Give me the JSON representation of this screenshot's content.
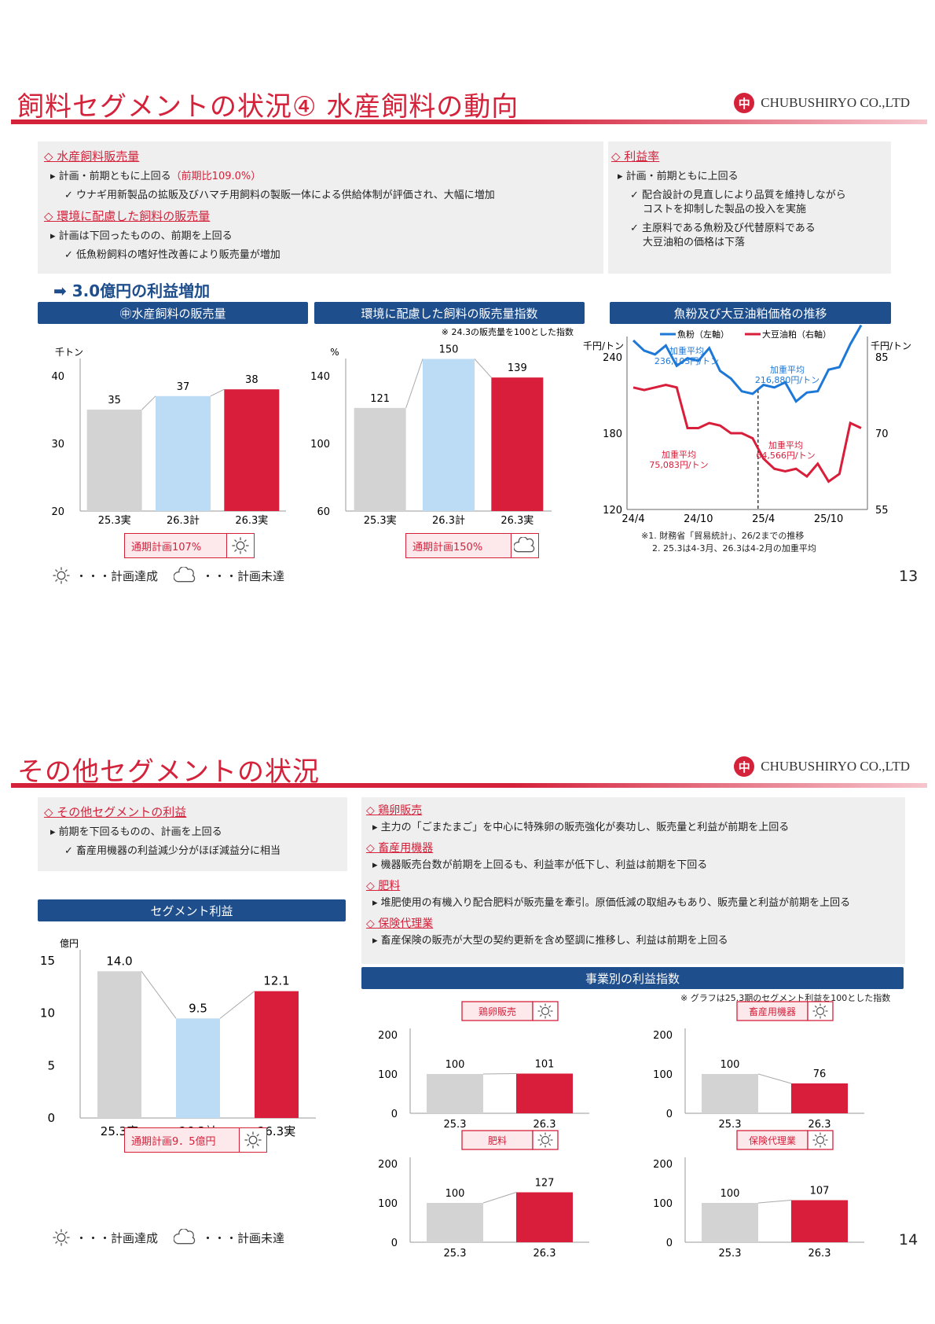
{
  "logo": {
    "mark": "中",
    "text": "CHUBUSHIRYO CO.,LTD"
  },
  "slide13": {
    "title": "飼料セグメントの状況④ 水産飼料の動向",
    "left": {
      "h1": "◇ 水産飼料販売量",
      "b1a": "▸ 計画・前期ともに上回る",
      "b1a_red": "（前期比109.0%）",
      "b1b": "✓ ウナギ用新製品の拡販及びハマチ用飼料の製販一体による供給体制が評価され、大幅に増加",
      "h2": "◇ 環境に配慮した飼料の販売量",
      "b2a": "▸ 計画は下回ったものの、前期を上回る",
      "b2b": "✓ 低魚粉飼料の嗜好性改善により販売量が増加"
    },
    "right": {
      "h1": "◇ 利益率",
      "b1": "▸ 計画・前期ともに上回る",
      "b2a": "✓ 配合設計の見直しにより品質を維持しながら",
      "b2b": "コストを抑制した製品の投入を実施",
      "b3a": "✓ 主原料である魚粉及び代替原料である",
      "b3b": "大豆油粕の価格は下落"
    },
    "arrow": "➡ 3.0億円の利益増加",
    "hdr1": "㊥水産飼料の販売量",
    "hdr2": "環境に配慮した飼料の販売量指数",
    "hdr3": "魚粉及び大豆油粕価格の推移",
    "box1": "通期計画107%",
    "box2": "通期計画150%",
    "note1": "※1. 財務省「貿易統計」、26/2までの推移",
    "note2": "2. 25.3は4-3月、26.3は4-2月の加重平均",
    "legend_ok": "・・・計画達成",
    "legend_ng": "・・・計画未達",
    "page": "13"
  },
  "slide14": {
    "title": "その他セグメントの状況",
    "left": {
      "h1": "◇ その他セグメントの利益",
      "b1": "▸ 前期を下回るものの、計画を上回る",
      "b2": "✓ 畜産用機器の利益減少分がほぼ減益分に相当"
    },
    "right": {
      "h1": "◇ 鶏卵販売",
      "b1": "▸ 主力の「ごまたまご」を中心に特殊卵の販売強化が奏功し、販売量と利益が前期を上回る",
      "h2": "◇ 畜産用機器",
      "b2": "▸ 機器販売台数が前期を上回るも、利益率が低下し、利益は前期を下回る",
      "h3": "◇ 肥料",
      "b3": "▸ 堆肥使用の有機入り配合肥料が販売量を牽引。原価低減の取組みもあり、販売量と利益が前期を上回る",
      "h4": "◇ 保険代理業",
      "b4": "▸ 畜産保険の販売が大型の契約更新を含め堅調に推移し、利益は前期を上回る"
    },
    "hdr1": "セグメント利益",
    "hdr2": "事業別の利益指数",
    "idx_note": "※ グラフは25.3期のセグメント利益を100とした指数",
    "box1": "通期計画9．5億円",
    "legend_ok": "・・・計画達成",
    "legend_ng": "・・・計画未達",
    "page": "14"
  },
  "chart_data": [
    {
      "type": "bar",
      "title": "㊥水産飼料の販売量",
      "ylabel": "千トン",
      "categories": [
        "25.3実",
        "26.3計",
        "26.3実"
      ],
      "values": [
        35,
        37,
        38
      ],
      "ylim": [
        20,
        40
      ],
      "yticks": [
        20,
        30,
        40
      ],
      "colors": [
        "#d3d3d3",
        "#bcdcf5",
        "#d81e3a"
      ]
    },
    {
      "type": "bar",
      "title": "環境に配慮した飼料の販売量指数",
      "ylabel": "%",
      "note": "※ 24.3の販売量を100とした指数",
      "categories": [
        "25.3実",
        "26.3計",
        "26.3実"
      ],
      "values": [
        121,
        150,
        139
      ],
      "ylim": [
        60,
        140
      ],
      "yticks": [
        60,
        100,
        140
      ],
      "colors": [
        "#d3d3d3",
        "#bcdcf5",
        "#d81e3a"
      ]
    },
    {
      "type": "line",
      "title": "魚粉及び大豆油粕価格の推移",
      "ylabel_left": "千円/トン",
      "ylabel_right": "千円/トン",
      "x_ticks": [
        "24/4",
        "24/10",
        "25/4",
        "25/10"
      ],
      "ylim_left": [
        120,
        240
      ],
      "yticks_left": [
        120,
        180,
        240
      ],
      "ylim_right": [
        55,
        85
      ],
      "yticks_right": [
        55,
        70,
        85
      ],
      "series": [
        {
          "name": "魚粉（左軸）",
          "axis": "left",
          "color": "#1e78d7",
          "values": [
            253,
            245,
            242,
            249,
            233,
            239,
            237,
            247,
            229,
            223,
            213,
            211,
            218,
            216,
            220,
            205,
            212,
            213,
            230,
            232,
            250,
            265
          ]
        },
        {
          "name": "大豆油粕（右軸）",
          "axis": "right",
          "color": "#d81e3a",
          "values": [
            79,
            78.5,
            79,
            79.5,
            79,
            71,
            71,
            72,
            71.5,
            70,
            70,
            69,
            65,
            63,
            62.5,
            63,
            61.5,
            64,
            60.5,
            62,
            72,
            71
          ]
        }
      ],
      "annotations": [
        "加重平均 236,103円/トン",
        "加重平均 216,880円/トン",
        "加重平均 75,083円/トン",
        "加重平均 64,566円/トン"
      ]
    },
    {
      "type": "bar",
      "title": "セグメント利益",
      "ylabel": "億円",
      "categories": [
        "25.3実",
        "26.3計",
        "26.3実"
      ],
      "values": [
        14.0,
        9.5,
        12.1
      ],
      "ylim": [
        0,
        15
      ],
      "yticks": [
        0,
        5,
        10,
        15
      ],
      "colors": [
        "#d3d3d3",
        "#bcdcf5",
        "#d81e3a"
      ]
    },
    {
      "type": "bar",
      "title": "鶏卵販売",
      "categories": [
        "25.3",
        "26.3"
      ],
      "values": [
        100,
        101
      ],
      "ylim": [
        0,
        200
      ],
      "yticks": [
        0,
        100,
        200
      ]
    },
    {
      "type": "bar",
      "title": "畜産用機器",
      "categories": [
        "25.3",
        "26.3"
      ],
      "values": [
        100,
        76
      ],
      "ylim": [
        0,
        200
      ],
      "yticks": [
        0,
        100,
        200
      ]
    },
    {
      "type": "bar",
      "title": "肥料",
      "categories": [
        "25.3",
        "26.3"
      ],
      "values": [
        100,
        127
      ],
      "ylim": [
        0,
        200
      ],
      "yticks": [
        0,
        100,
        200
      ]
    },
    {
      "type": "bar",
      "title": "保険代理業",
      "categories": [
        "25.3",
        "26.3"
      ],
      "values": [
        100,
        107
      ],
      "ylim": [
        0,
        200
      ],
      "yticks": [
        0,
        100,
        200
      ]
    }
  ]
}
